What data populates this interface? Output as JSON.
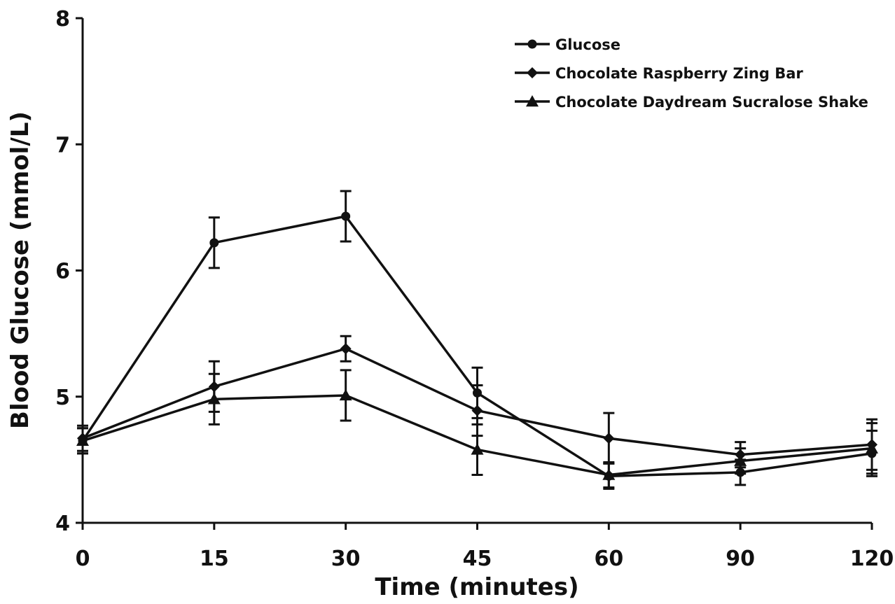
{
  "chart_data": {
    "type": "line",
    "title": "",
    "xlabel": "Time (minutes)",
    "ylabel": "Blood Glucose (mmol/L)",
    "categories": [
      "0",
      "15",
      "30",
      "45",
      "60",
      "90",
      "120"
    ],
    "ylim": [
      4,
      8
    ],
    "yticks": [
      "4",
      "5",
      "6",
      "7",
      "8"
    ],
    "grid": false,
    "legend_position": "top-right",
    "series": [
      {
        "name": "Glucose",
        "marker": "circle",
        "values": [
          4.65,
          6.22,
          6.43,
          5.03,
          4.37,
          4.4,
          4.55
        ],
        "errors": [
          0.1,
          0.2,
          0.2,
          0.2,
          0.1,
          0.1,
          0.18
        ]
      },
      {
        "name": "Chocolate Raspberry Zing Bar",
        "marker": "diamond",
        "values": [
          4.67,
          5.08,
          5.38,
          4.89,
          4.67,
          4.54,
          4.62
        ],
        "errors": [
          0.1,
          0.2,
          0.1,
          0.2,
          0.2,
          0.1,
          0.2
        ]
      },
      {
        "name": "Chocolate Daydream Sucralose Shake",
        "marker": "triangle",
        "values": [
          4.65,
          4.98,
          5.01,
          4.58,
          4.38,
          4.49,
          4.59
        ],
        "errors": [
          0.1,
          0.2,
          0.2,
          0.2,
          0.1,
          0.1,
          0.2
        ]
      }
    ],
    "colors": {
      "line": "#111111",
      "background": "#ffffff"
    }
  }
}
